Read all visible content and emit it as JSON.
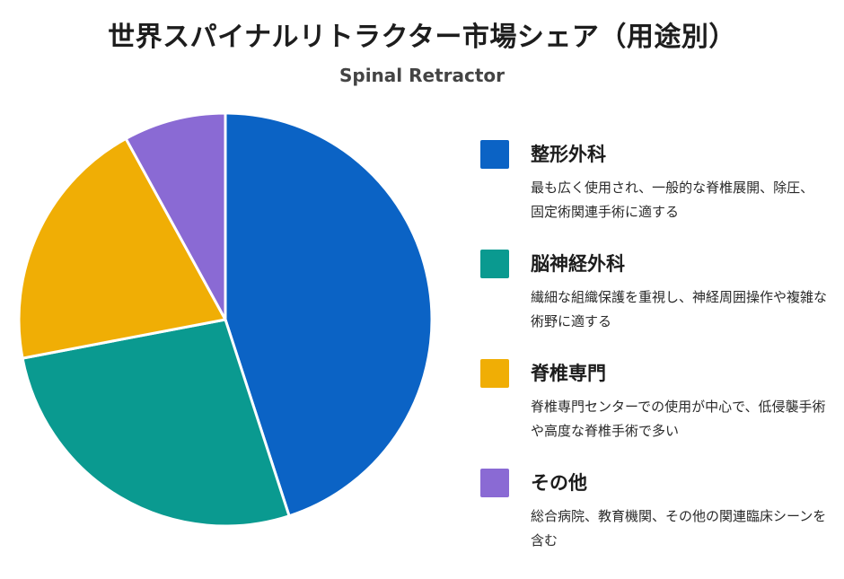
{
  "title": "世界スパイナルリトラクター市場シェア（用途別）",
  "subtitle": "Spinal Retractor",
  "chart_data": {
    "type": "pie",
    "title": "世界スパイナルリトラクター市場シェア（用途別）",
    "subtitle": "Spinal Retractor",
    "legend_position": "right",
    "slices": [
      {
        "label": "整形外科",
        "value": 45,
        "color": "#0b63c5",
        "description": "最も広く使用され、一般的な脊椎展開、除圧、固定術関連手術に適する"
      },
      {
        "label": "脳神経外科",
        "value": 27,
        "color": "#0a9a90",
        "description": "繊細な組織保護を重視し、神経周囲操作や複雑な術野に適する"
      },
      {
        "label": "脊椎専門",
        "value": 20,
        "color": "#f0ae05",
        "description": "脊椎専門センターでの使用が中心で、低侵襲手術や高度な脊椎手術で多い"
      },
      {
        "label": "その他",
        "value": 8,
        "color": "#8a6ad4",
        "description": "総合病院、教育機関、その他の関連臨床シーンを含む"
      }
    ]
  }
}
